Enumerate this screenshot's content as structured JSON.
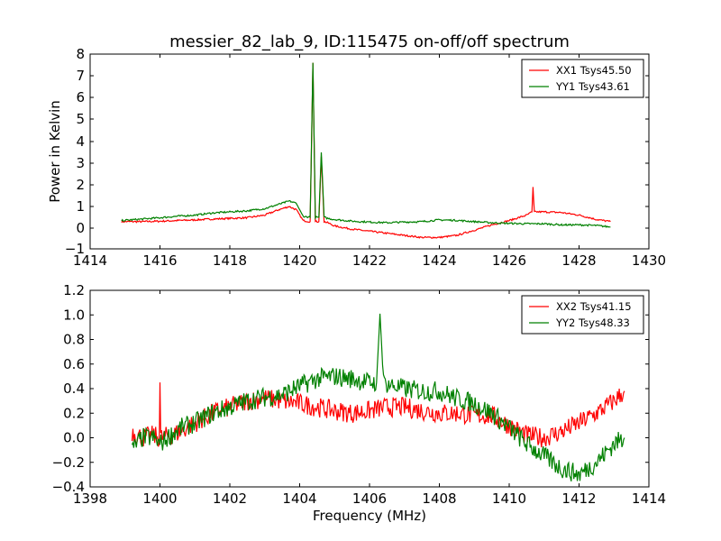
{
  "chart_data": [
    {
      "type": "line",
      "title": "messier_82_lab_9, ID:115475 on-off/off spectrum",
      "xlabel": "",
      "ylabel": "Power in Kelvin",
      "xlim": [
        1414,
        1430
      ],
      "ylim": [
        -1,
        8
      ],
      "xticks": [
        1414,
        1416,
        1418,
        1420,
        1422,
        1424,
        1426,
        1428,
        1430
      ],
      "yticks": [
        -1,
        0,
        1,
        2,
        3,
        4,
        5,
        6,
        7,
        8
      ],
      "y_scale": "symlog-like (linear below 1, logarithmic above 1)",
      "grid": false,
      "legend": "top-right",
      "series": [
        {
          "name": "XX1 Tsys45.50",
          "color": "#ff0000",
          "x": [
            1414.9,
            1415.5,
            1416.0,
            1416.5,
            1417.0,
            1417.5,
            1418.0,
            1418.5,
            1419.0,
            1419.4,
            1419.7,
            1419.9,
            1420.1,
            1420.3,
            1420.38,
            1420.45,
            1420.55,
            1420.62,
            1420.7,
            1420.8,
            1421.0,
            1421.5,
            1422.0,
            1422.5,
            1423.0,
            1423.5,
            1424.0,
            1424.5,
            1425.0,
            1425.5,
            1426.0,
            1426.5,
            1426.65,
            1426.68,
            1426.72,
            1427.0,
            1427.5,
            1428.0,
            1428.5,
            1428.9
          ],
          "y": [
            0.3,
            0.3,
            0.32,
            0.35,
            0.38,
            0.42,
            0.45,
            0.48,
            0.6,
            0.85,
            1.0,
            0.85,
            0.35,
            0.3,
            7.6,
            0.3,
            0.3,
            3.3,
            0.3,
            0.25,
            0.1,
            -0.05,
            -0.15,
            -0.25,
            -0.35,
            -0.45,
            -0.45,
            -0.35,
            -0.1,
            0.15,
            0.35,
            0.6,
            0.75,
            1.9,
            0.75,
            0.75,
            0.72,
            0.6,
            0.4,
            0.3
          ]
        },
        {
          "name": "YY1 Tsys43.61",
          "color": "#008000",
          "x": [
            1414.9,
            1415.5,
            1416.0,
            1416.5,
            1417.0,
            1417.5,
            1418.0,
            1418.5,
            1419.0,
            1419.4,
            1419.7,
            1419.9,
            1420.1,
            1420.3,
            1420.38,
            1420.45,
            1420.55,
            1420.62,
            1420.7,
            1420.8,
            1421.0,
            1421.5,
            1422.0,
            1422.5,
            1423.0,
            1423.5,
            1424.0,
            1424.5,
            1425.0,
            1425.5,
            1426.0,
            1426.5,
            1427.0,
            1427.5,
            1428.0,
            1428.5,
            1428.9
          ],
          "y": [
            0.35,
            0.42,
            0.48,
            0.55,
            0.6,
            0.7,
            0.75,
            0.8,
            0.9,
            1.1,
            1.25,
            1.15,
            0.55,
            0.5,
            7.6,
            0.5,
            0.5,
            3.5,
            0.5,
            0.45,
            0.4,
            0.32,
            0.28,
            0.25,
            0.28,
            0.3,
            0.38,
            0.36,
            0.3,
            0.25,
            0.22,
            0.2,
            0.2,
            0.15,
            0.15,
            0.12,
            0.05
          ]
        }
      ]
    },
    {
      "type": "line",
      "title": "",
      "xlabel": "Frequency (MHz)",
      "ylabel": "",
      "xlim": [
        1398,
        1414
      ],
      "ylim": [
        -0.4,
        1.2
      ],
      "xticks": [
        1398,
        1400,
        1402,
        1404,
        1406,
        1408,
        1410,
        1412,
        1414
      ],
      "yticks": [
        -0.4,
        -0.2,
        0.0,
        0.2,
        0.4,
        0.6,
        0.8,
        1.0,
        1.2
      ],
      "grid": false,
      "legend": "top-right",
      "series": [
        {
          "name": "XX2 Tsys41.15",
          "color": "#ff0000",
          "x": [
            1399.2,
            1399.5,
            1399.8,
            1399.98,
            1400.0,
            1400.02,
            1400.3,
            1400.6,
            1401.0,
            1401.5,
            1402.0,
            1402.5,
            1403.0,
            1403.5,
            1404.0,
            1404.5,
            1405.0,
            1405.5,
            1406.0,
            1406.5,
            1407.0,
            1407.5,
            1408.0,
            1408.5,
            1409.0,
            1409.5,
            1410.0,
            1410.5,
            1411.0,
            1411.5,
            1412.0,
            1412.5,
            1413.0,
            1413.3
          ],
          "y": [
            0.05,
            0.0,
            0.02,
            0.0,
            0.45,
            0.0,
            0.02,
            0.05,
            0.12,
            0.2,
            0.25,
            0.3,
            0.32,
            0.3,
            0.28,
            0.25,
            0.22,
            0.2,
            0.22,
            0.25,
            0.25,
            0.22,
            0.2,
            0.2,
            0.18,
            0.18,
            0.1,
            0.02,
            0.0,
            0.05,
            0.12,
            0.2,
            0.3,
            0.38
          ]
        },
        {
          "name": "YY2 Tsys48.33",
          "color": "#008000",
          "x": [
            1399.2,
            1399.5,
            1399.8,
            1400.0,
            1400.3,
            1400.6,
            1401.0,
            1401.5,
            1402.0,
            1402.5,
            1403.0,
            1403.5,
            1404.0,
            1404.5,
            1405.0,
            1405.5,
            1406.0,
            1406.2,
            1406.3,
            1406.4,
            1406.7,
            1407.0,
            1407.5,
            1408.0,
            1408.5,
            1409.0,
            1409.5,
            1410.0,
            1410.5,
            1411.0,
            1411.5,
            1412.0,
            1412.5,
            1413.0,
            1413.3
          ],
          "y": [
            -0.1,
            0.0,
            0.0,
            -0.05,
            0.02,
            0.08,
            0.12,
            0.2,
            0.25,
            0.3,
            0.33,
            0.35,
            0.42,
            0.48,
            0.5,
            0.48,
            0.45,
            0.45,
            1.01,
            0.45,
            0.42,
            0.4,
            0.38,
            0.38,
            0.32,
            0.28,
            0.2,
            0.08,
            -0.05,
            -0.15,
            -0.25,
            -0.3,
            -0.2,
            -0.05,
            0.0
          ]
        }
      ]
    }
  ]
}
